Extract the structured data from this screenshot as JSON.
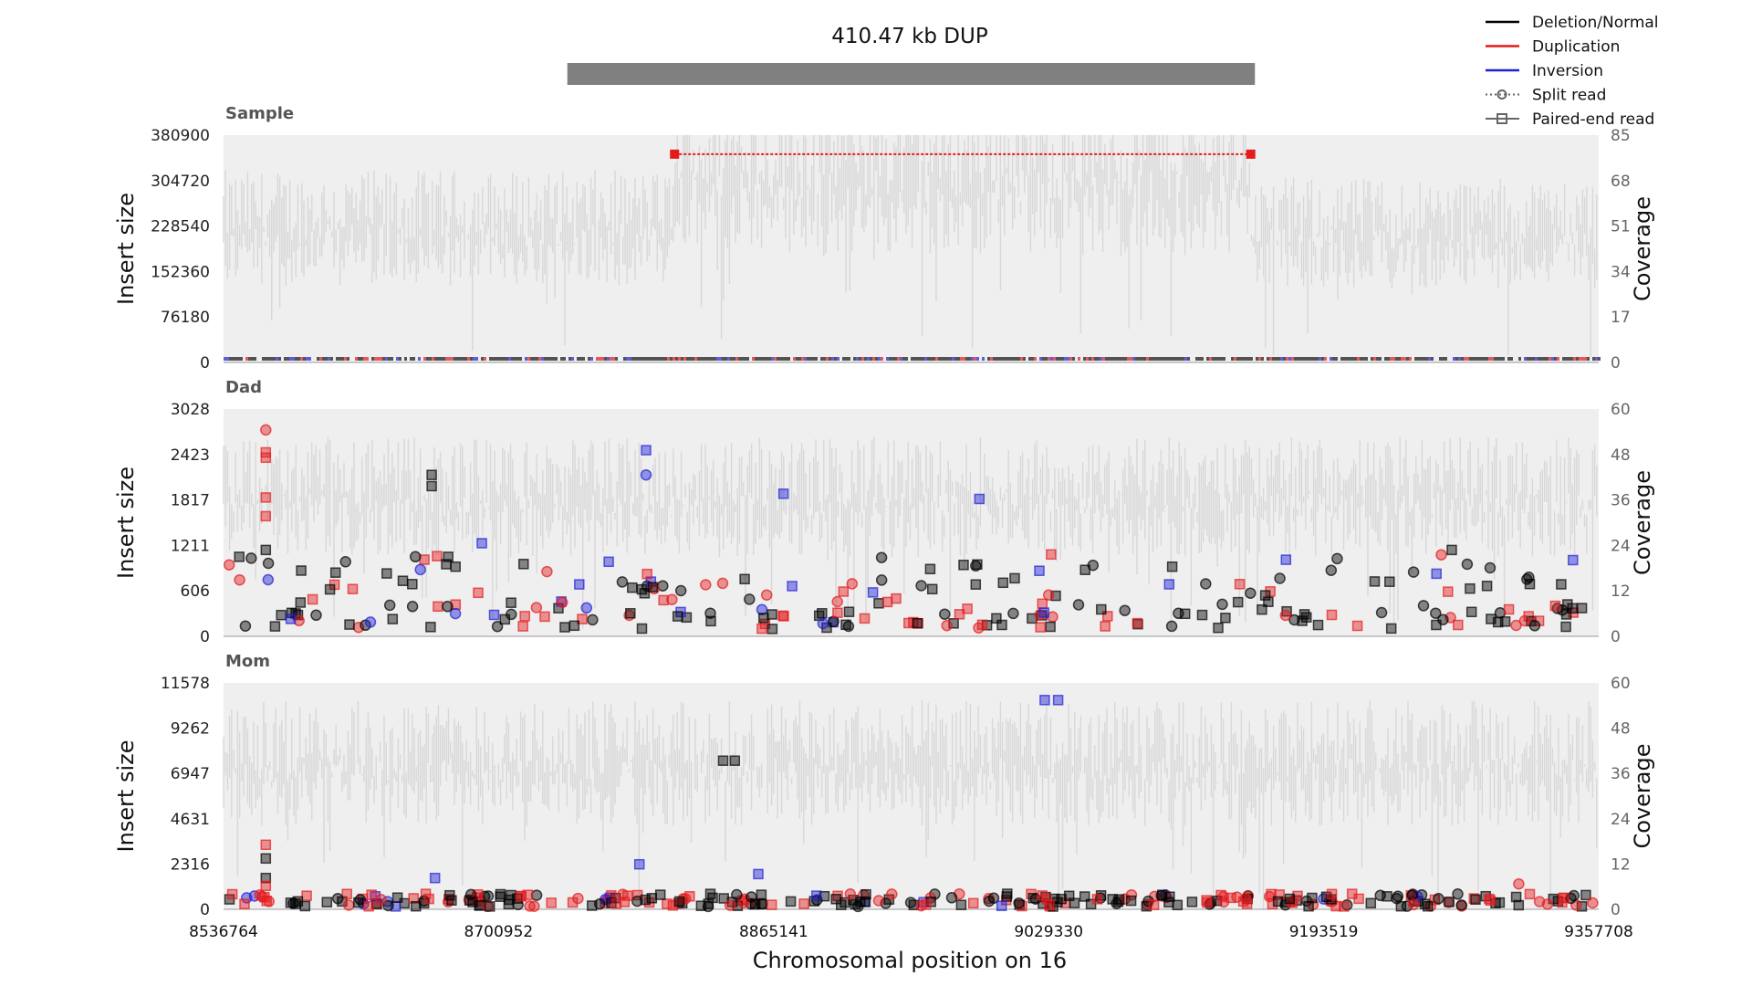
{
  "chart_data": {
    "type": "scatter",
    "title": "410.47 kb DUP",
    "xlabel": "Chromosomal position on 16",
    "x_ticks": [
      "8536764",
      "8700952",
      "8865141",
      "9029330",
      "9193519",
      "9357708"
    ],
    "xlim": [
      8536764,
      9357708
    ],
    "sv_region": {
      "start": 8742000,
      "end": 9152470,
      "label": "410.47 kb DUP"
    },
    "legend": {
      "placement": "top-right",
      "entries": [
        {
          "label": "Deletion/Normal",
          "color": "#000000",
          "style": "line"
        },
        {
          "label": "Duplication",
          "color": "#e41a1c",
          "style": "line"
        },
        {
          "label": "Inversion",
          "color": "#1f1fd6",
          "style": "line"
        },
        {
          "label": "Split read",
          "color": "#666666",
          "style": "dotted-circle"
        },
        {
          "label": "Paired-end read",
          "color": "#666666",
          "style": "square"
        }
      ]
    },
    "panels": [
      {
        "name": "Sample",
        "ylabel_left": "Insert size",
        "ylabel_right": "Coverage",
        "y_ticks": [
          "380900",
          "304720",
          "228540",
          "152360",
          "76180",
          "0"
        ],
        "ylim": [
          0,
          380900
        ],
        "coverage_ticks": [
          "85",
          "68",
          "51",
          "34",
          "17",
          "0"
        ],
        "coverage_lim": [
          0,
          85
        ],
        "coverage_profile": [
          {
            "from": 8536764,
            "to": 8806000,
            "level": 52
          },
          {
            "from": 8806000,
            "to": 9150000,
            "level": 72
          },
          {
            "from": 9150000,
            "to": 9357708,
            "level": 50
          }
        ],
        "split_read_link": {
          "x1": 8806000,
          "x2": 9150000,
          "y": 349000,
          "color": "#e41a1c"
        }
      },
      {
        "name": "Dad",
        "ylabel_left": "Insert size",
        "ylabel_right": "Coverage",
        "y_ticks": [
          "3028",
          "2423",
          "1817",
          "1211",
          "606",
          "0"
        ],
        "ylim": [
          0,
          3028
        ],
        "coverage_ticks": [
          "60",
          "48",
          "36",
          "24",
          "12",
          "0"
        ],
        "coverage_lim": [
          0,
          60
        ],
        "coverage_profile": [
          {
            "from": 8536764,
            "to": 9357708,
            "level": 38
          }
        ],
        "highlight_points": [
          {
            "x": 8562000,
            "y": 2750,
            "kind": "split",
            "color": "#e41a1c"
          },
          {
            "x": 8562000,
            "y": 2450,
            "kind": "pe",
            "color": "#e41a1c"
          },
          {
            "x": 8562000,
            "y": 2380,
            "kind": "pe",
            "color": "#e41a1c"
          },
          {
            "x": 8562000,
            "y": 1850,
            "kind": "pe",
            "color": "#e41a1c"
          },
          {
            "x": 8562000,
            "y": 1600,
            "kind": "pe",
            "color": "#e41a1c"
          },
          {
            "x": 8562000,
            "y": 1150,
            "kind": "pe",
            "color": "#000000"
          },
          {
            "x": 8661000,
            "y": 2150,
            "kind": "pe",
            "color": "#000000"
          },
          {
            "x": 8661000,
            "y": 2000,
            "kind": "pe",
            "color": "#000000"
          },
          {
            "x": 8789000,
            "y": 2480,
            "kind": "pe",
            "color": "#1f1fd6"
          },
          {
            "x": 8789000,
            "y": 2150,
            "kind": "split",
            "color": "#1f1fd6"
          },
          {
            "x": 8871000,
            "y": 1900,
            "kind": "pe",
            "color": "#1f1fd6"
          },
          {
            "x": 8988000,
            "y": 1830,
            "kind": "pe",
            "color": "#1f1fd6"
          },
          {
            "x": 8691000,
            "y": 1240,
            "kind": "pe",
            "color": "#1f1fd6"
          },
          {
            "x": 9171000,
            "y": 1020,
            "kind": "pe",
            "color": "#1f1fd6"
          },
          {
            "x": 9270000,
            "y": 1150,
            "kind": "pe",
            "color": "#000000"
          }
        ]
      },
      {
        "name": "Mom",
        "ylabel_left": "Insert size",
        "ylabel_right": "Coverage",
        "y_ticks": [
          "11578",
          "9262",
          "6947",
          "4631",
          "2316",
          "0"
        ],
        "ylim": [
          0,
          11578
        ],
        "coverage_ticks": [
          "60",
          "48",
          "36",
          "24",
          "12",
          "0"
        ],
        "coverage_lim": [
          0,
          60
        ],
        "coverage_profile": [
          {
            "from": 8536764,
            "to": 9357708,
            "level": 40
          }
        ],
        "highlight_points": [
          {
            "x": 8562000,
            "y": 3300,
            "kind": "pe",
            "color": "#e41a1c"
          },
          {
            "x": 8562000,
            "y": 2600,
            "kind": "pe",
            "color": "#000000"
          },
          {
            "x": 8562000,
            "y": 1600,
            "kind": "pe",
            "color": "#000000"
          },
          {
            "x": 8562000,
            "y": 1200,
            "kind": "pe",
            "color": "#e41a1c"
          },
          {
            "x": 8663000,
            "y": 1600,
            "kind": "pe",
            "color": "#1f1fd6"
          },
          {
            "x": 8785000,
            "y": 2300,
            "kind": "pe",
            "color": "#1f1fd6"
          },
          {
            "x": 8856000,
            "y": 1800,
            "kind": "pe",
            "color": "#1f1fd6"
          },
          {
            "x": 8835000,
            "y": 7600,
            "kind": "pe",
            "color": "#000000"
          },
          {
            "x": 8842000,
            "y": 7600,
            "kind": "pe",
            "color": "#000000"
          },
          {
            "x": 9027000,
            "y": 10700,
            "kind": "pe",
            "color": "#1f1fd6"
          },
          {
            "x": 9035000,
            "y": 10700,
            "kind": "pe",
            "color": "#1f1fd6"
          },
          {
            "x": 9310000,
            "y": 1300,
            "kind": "split",
            "color": "#e41a1c"
          }
        ]
      }
    ]
  }
}
